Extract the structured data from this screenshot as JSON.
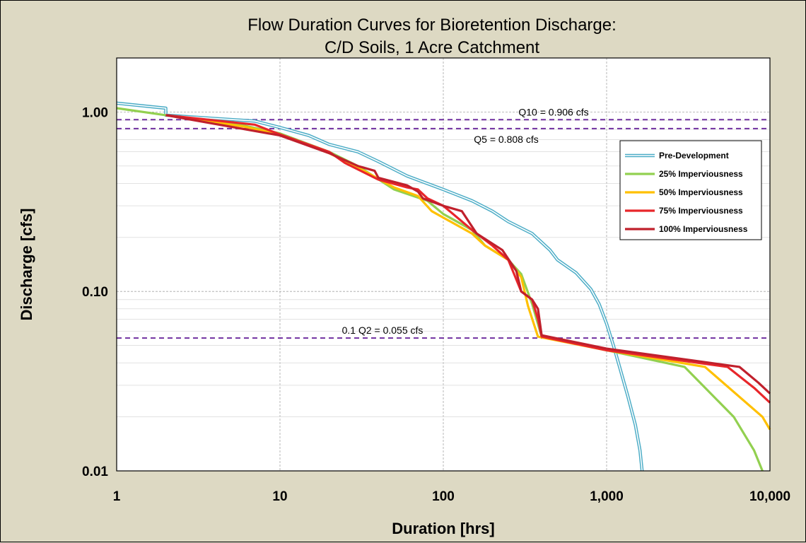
{
  "chart_data": {
    "type": "line",
    "title": "Flow Duration Curves for Bioretention Discharge:",
    "subtitle": "C/D Soils, 1 Acre Catchment",
    "xlabel": "Duration [hrs]",
    "ylabel": "Discharge [cfs]",
    "x_scale": "log",
    "y_scale": "log",
    "xlim": [
      1,
      10000
    ],
    "ylim": [
      0.01,
      2
    ],
    "x_ticks": [
      1,
      10,
      100,
      1000,
      10000
    ],
    "x_tick_labels": [
      "1",
      "10",
      "100",
      "1,000",
      "10,000"
    ],
    "y_ticks": [
      0.01,
      0.1,
      1
    ],
    "y_tick_labels": [
      "0.01",
      "0.10",
      "1.00"
    ],
    "grid": true,
    "legend_position": "right",
    "reference_lines": [
      {
        "label": "Q10 = 0.906 cfs",
        "y": 0.906,
        "color": "#7030a0"
      },
      {
        "label": "Q5 = 0.808 cfs",
        "y": 0.808,
        "color": "#7030a0"
      },
      {
        "label": "0.1 Q2 = 0.055 cfs",
        "y": 0.055,
        "color": "#7030a0"
      }
    ],
    "series": [
      {
        "name": "Pre-Development",
        "color": "#4bacc6",
        "style": "double",
        "points": [
          [
            1,
            1.12
          ],
          [
            2,
            1.05
          ],
          [
            2,
            0.96
          ],
          [
            4,
            0.92
          ],
          [
            7,
            0.89
          ],
          [
            10,
            0.82
          ],
          [
            15,
            0.74
          ],
          [
            20,
            0.66
          ],
          [
            30,
            0.6
          ],
          [
            40,
            0.53
          ],
          [
            60,
            0.44
          ],
          [
            100,
            0.37
          ],
          [
            150,
            0.32
          ],
          [
            200,
            0.28
          ],
          [
            250,
            0.245
          ],
          [
            350,
            0.21
          ],
          [
            450,
            0.17
          ],
          [
            500,
            0.15
          ],
          [
            650,
            0.127
          ],
          [
            800,
            0.103
          ],
          [
            900,
            0.085
          ],
          [
            1000,
            0.066
          ],
          [
            1100,
            0.05
          ],
          [
            1200,
            0.038
          ],
          [
            1350,
            0.026
          ],
          [
            1500,
            0.018
          ],
          [
            1600,
            0.013
          ],
          [
            1650,
            0.01
          ]
        ]
      },
      {
        "name": "25% Imperviousness",
        "color": "#92d050",
        "points": [
          [
            1,
            1.05
          ],
          [
            2,
            0.96
          ],
          [
            6,
            0.84
          ],
          [
            10,
            0.76
          ],
          [
            20,
            0.6
          ],
          [
            30,
            0.5
          ],
          [
            50,
            0.37
          ],
          [
            80,
            0.32
          ],
          [
            100,
            0.27
          ],
          [
            150,
            0.22
          ],
          [
            180,
            0.18
          ],
          [
            250,
            0.15
          ],
          [
            300,
            0.125
          ],
          [
            350,
            0.085
          ],
          [
            400,
            0.056
          ],
          [
            1000,
            0.047
          ],
          [
            3000,
            0.038
          ],
          [
            6000,
            0.02
          ],
          [
            8000,
            0.013
          ],
          [
            9000,
            0.01
          ]
        ]
      },
      {
        "name": "50% Imperviousness",
        "color": "#ffc000",
        "points": [
          [
            2,
            0.96
          ],
          [
            6,
            0.83
          ],
          [
            10,
            0.75
          ],
          [
            20,
            0.59
          ],
          [
            30,
            0.49
          ],
          [
            50,
            0.38
          ],
          [
            70,
            0.34
          ],
          [
            85,
            0.28
          ],
          [
            150,
            0.21
          ],
          [
            180,
            0.18
          ],
          [
            250,
            0.15
          ],
          [
            300,
            0.12
          ],
          [
            330,
            0.083
          ],
          [
            380,
            0.056
          ],
          [
            1000,
            0.047
          ],
          [
            4000,
            0.038
          ],
          [
            9000,
            0.02
          ],
          [
            10000,
            0.017
          ]
        ]
      },
      {
        "name": "75% Imperviousness",
        "color": "#e8262a",
        "points": [
          [
            2,
            0.96
          ],
          [
            7,
            0.85
          ],
          [
            10,
            0.75
          ],
          [
            20,
            0.6
          ],
          [
            25,
            0.52
          ],
          [
            40,
            0.42
          ],
          [
            60,
            0.38
          ],
          [
            70,
            0.37
          ],
          [
            80,
            0.33
          ],
          [
            100,
            0.3
          ],
          [
            150,
            0.22
          ],
          [
            200,
            0.18
          ],
          [
            250,
            0.15
          ],
          [
            300,
            0.1
          ],
          [
            350,
            0.09
          ],
          [
            380,
            0.07
          ],
          [
            400,
            0.056
          ],
          [
            1000,
            0.047
          ],
          [
            5500,
            0.038
          ],
          [
            8000,
            0.029
          ],
          [
            10000,
            0.024
          ]
        ]
      },
      {
        "name": "100% Imperviousness",
        "color": "#c0202c",
        "points": [
          [
            2,
            0.96
          ],
          [
            10,
            0.74
          ],
          [
            20,
            0.59
          ],
          [
            30,
            0.5
          ],
          [
            38,
            0.47
          ],
          [
            40,
            0.43
          ],
          [
            60,
            0.39
          ],
          [
            70,
            0.36
          ],
          [
            75,
            0.33
          ],
          [
            100,
            0.3
          ],
          [
            130,
            0.28
          ],
          [
            160,
            0.21
          ],
          [
            230,
            0.17
          ],
          [
            280,
            0.13
          ],
          [
            300,
            0.1
          ],
          [
            350,
            0.09
          ],
          [
            380,
            0.08
          ],
          [
            400,
            0.057
          ],
          [
            1000,
            0.048
          ],
          [
            6500,
            0.038
          ],
          [
            8500,
            0.031
          ],
          [
            10000,
            0.027
          ]
        ]
      }
    ]
  }
}
